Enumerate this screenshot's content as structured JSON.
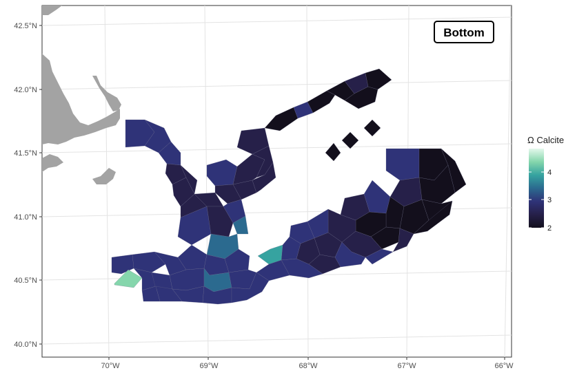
{
  "map": {
    "panel_label": "Bottom",
    "legend": {
      "title": "Ω Calcite",
      "ticks": [
        "2",
        "3",
        "4"
      ],
      "min": 2,
      "max": 5,
      "colors": [
        "#130f1c",
        "#262049",
        "#2f3378",
        "#2b6a8f",
        "#36a3a0",
        "#85d6ac",
        "#e4f8ec"
      ]
    },
    "x_axis": {
      "ticks": [
        "70°W",
        "69°W",
        "68°W",
        "67°W",
        "66°W"
      ]
    },
    "y_axis": {
      "ticks": [
        "40.0°N",
        "40.5°N",
        "41.0°N",
        "41.5°N",
        "42.0°N",
        "42.5°N"
      ]
    },
    "land_color": "#a3a3a3",
    "panel_background": "#ffffff",
    "grid_color": "#e3e3e3"
  }
}
